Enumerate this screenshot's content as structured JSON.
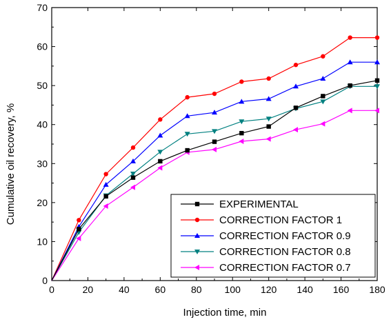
{
  "chart_data": {
    "type": "line",
    "xlabel": "Injection time, min",
    "ylabel": "Cumulative oil recovery, %",
    "xlim": [
      0,
      180
    ],
    "ylim": [
      0,
      70
    ],
    "xticks": [
      0,
      20,
      40,
      60,
      80,
      100,
      120,
      140,
      160,
      180
    ],
    "yticks": [
      0,
      10,
      20,
      30,
      40,
      50,
      60,
      70
    ],
    "grid": false,
    "legend_position": "bottom-right",
    "x": [
      0,
      15,
      30,
      45,
      60,
      75,
      90,
      105,
      120,
      135,
      150,
      165,
      180
    ],
    "series": [
      {
        "name": "EXPERIMENTAL",
        "color": "#000000",
        "marker": "square",
        "values": [
          0,
          13.2,
          21.6,
          26.4,
          30.6,
          33.4,
          35.6,
          37.8,
          39.5,
          44.3,
          47.3,
          50.0,
          51.3
        ]
      },
      {
        "name": "CORRECTION FACTOR 1",
        "color": "#ff0000",
        "marker": "circle",
        "values": [
          0,
          15.5,
          27.3,
          34.1,
          41.3,
          47.0,
          47.9,
          51.0,
          51.8,
          55.3,
          57.5,
          62.3,
          62.3
        ]
      },
      {
        "name": "CORRECTION FACTOR 0.9",
        "color": "#0000ff",
        "marker": "triangle-up",
        "values": [
          0,
          13.8,
          24.6,
          30.6,
          37.2,
          42.2,
          43.1,
          45.9,
          46.6,
          49.8,
          51.8,
          56.0,
          56.0
        ]
      },
      {
        "name": "CORRECTION FACTOR 0.8",
        "color": "#008080",
        "marker": "triangle-down",
        "values": [
          0,
          12.4,
          21.8,
          27.4,
          33.0,
          37.6,
          38.3,
          40.8,
          41.5,
          44.1,
          45.9,
          49.8,
          49.8
        ]
      },
      {
        "name": "CORRECTION FACTOR 0.7",
        "color": "#ff00ff",
        "marker": "triangle-left",
        "values": [
          0,
          10.8,
          19.1,
          23.9,
          28.9,
          32.9,
          33.6,
          35.7,
          36.3,
          38.7,
          40.2,
          43.6,
          43.6
        ]
      }
    ]
  }
}
